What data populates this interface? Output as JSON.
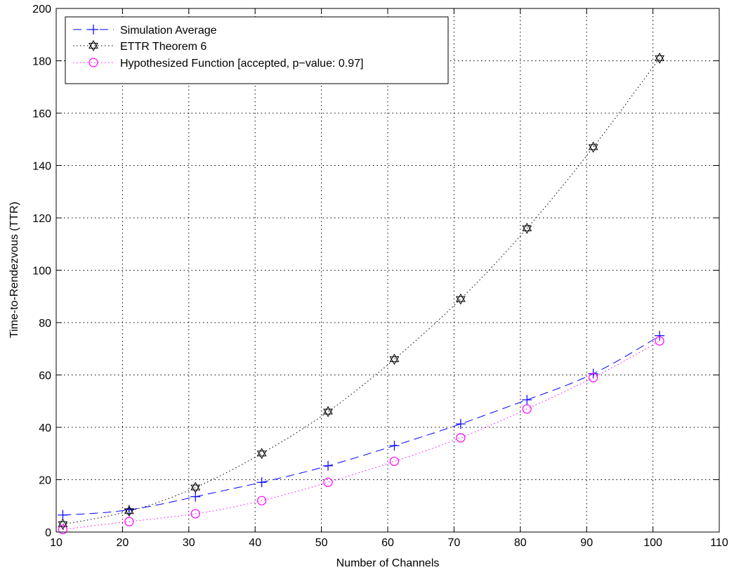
{
  "chart_data": {
    "type": "line",
    "xlabel": "Number of Channels",
    "ylabel": "Time-to-Rendezvous (TTR)",
    "xlim": [
      10,
      110
    ],
    "ylim": [
      0,
      200
    ],
    "xticks": [
      10,
      20,
      30,
      40,
      50,
      60,
      70,
      80,
      90,
      100,
      110
    ],
    "yticks": [
      0,
      20,
      40,
      60,
      80,
      100,
      120,
      140,
      160,
      180,
      200
    ],
    "grid": true,
    "legend_position": "top-left",
    "x": [
      11,
      21,
      31,
      41,
      51,
      61,
      71,
      81,
      91,
      101
    ],
    "series": [
      {
        "name": "Simulation Average",
        "values": [
          6.5,
          8.5,
          13.5,
          19,
          25.3,
          33,
          41.3,
          50.5,
          60.5,
          75
        ],
        "color": "#0000ff",
        "line_style": "dashed",
        "marker": "plus"
      },
      {
        "name": "ETTR Theorem 6",
        "values": [
          3,
          8,
          17,
          30,
          46,
          66,
          89,
          116,
          147,
          181
        ],
        "color": "#000000",
        "line_style": "dotted",
        "marker": "hexagram"
      },
      {
        "name": "Hypothesized Function [accepted, p−value: 0.97]",
        "values": [
          1,
          4,
          7,
          12,
          19,
          27,
          36,
          47,
          59,
          73
        ],
        "color": "#ff00ff",
        "line_style": "dotted",
        "marker": "circle"
      }
    ]
  }
}
